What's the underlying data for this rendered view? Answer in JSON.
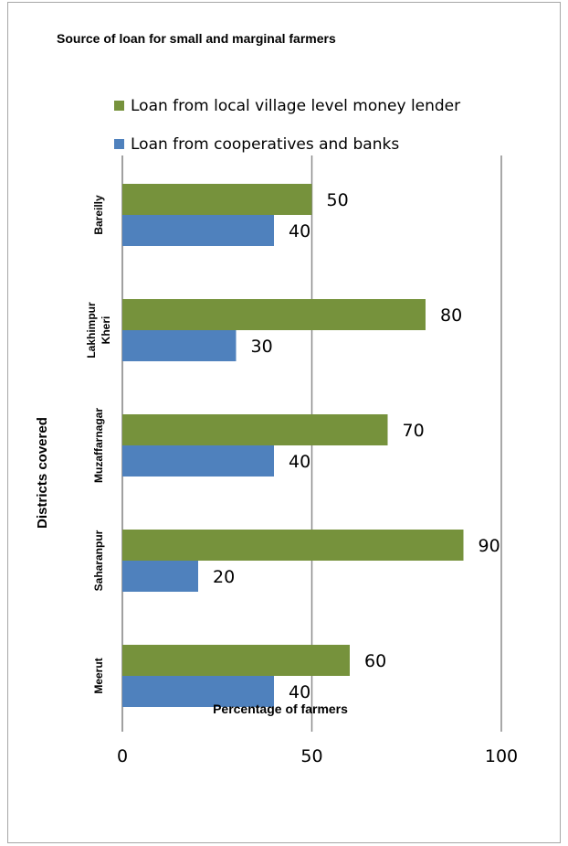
{
  "chart_data": {
    "type": "bar",
    "orientation": "horizontal",
    "title": "Source of loan for small and marginal farmers",
    "xlabel": "Percentage of farmers",
    "ylabel": "Districts covered",
    "xlim": [
      0,
      100
    ],
    "xticks": [
      0,
      50,
      100
    ],
    "grid": "vertical",
    "legend_position": "top",
    "categories": [
      "Bareilly",
      "Lakhimpur Kheri",
      "Muzaffarnagar",
      "Saharanpur",
      "Meerut"
    ],
    "category_labels": [
      [
        "Bareilly"
      ],
      [
        "Lakhimpur",
        "Kheri"
      ],
      [
        "Muzaffarnagar"
      ],
      [
        "Saharanpur"
      ],
      [
        "Meerut"
      ]
    ],
    "series": [
      {
        "name": "Loan from local village level money lender",
        "color": "#76923c",
        "values": [
          50,
          80,
          70,
          90,
          60
        ]
      },
      {
        "name": "Loan from cooperatives and banks",
        "color": "#4f81bd",
        "values": [
          40,
          30,
          40,
          20,
          40
        ]
      }
    ]
  }
}
